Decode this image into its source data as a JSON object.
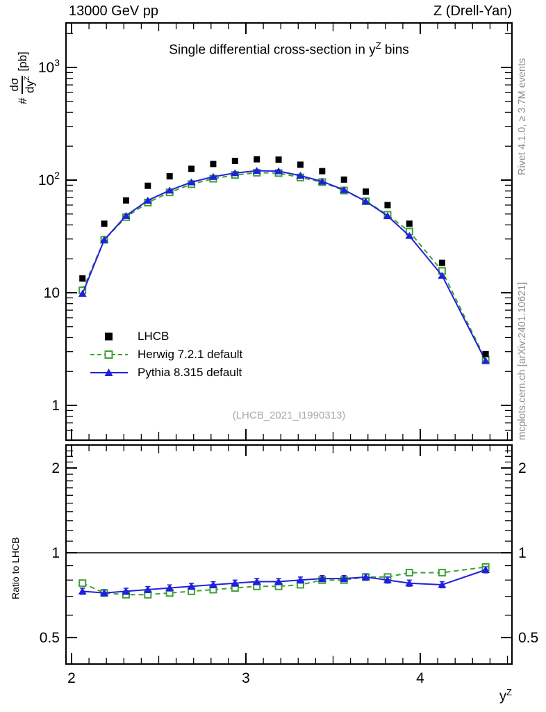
{
  "header": {
    "left": "13000 GeV pp",
    "right": "Z (Drell-Yan)"
  },
  "title": {
    "pre": "Single differential cross-section in ",
    "base": "y",
    "sup": "Z",
    "post": " bins"
  },
  "watermark": "(LHCB_2021_I1990313)",
  "side_notes": {
    "top_right": "Rivet 4.1.0, ≥ 3.7M events",
    "bottom_right": "mcplots.cern.ch [arXiv:2401.10621]"
  },
  "axes": {
    "x_label": {
      "base": "y",
      "sup": "Z"
    },
    "y_label": {
      "prefix": "#",
      "numerator": "dσ",
      "denominator_base": "dy",
      "denominator_sup": "Z",
      "units": "[pb]"
    },
    "ratio_label": "Ratio to LHCB",
    "x_ticks": [
      {
        "v": 2,
        "label": "2"
      },
      {
        "v": 3,
        "label": "3"
      },
      {
        "v": 4,
        "label": "4"
      }
    ],
    "y_ticks_main": [
      {
        "v": 1,
        "label": "1"
      },
      {
        "v": 10,
        "label": "10"
      },
      {
        "v": 100,
        "label": "10",
        "sup": "2"
      },
      {
        "v": 1000,
        "label": "10",
        "sup": "3"
      }
    ],
    "y_ticks_ratio": [
      {
        "v": 0.5,
        "label": "0.5"
      },
      {
        "v": 1,
        "label": "1"
      },
      {
        "v": 2,
        "label": "2"
      }
    ]
  },
  "chart_data": {
    "type": "line",
    "x_axis_scale": "linear",
    "y_axis_scale": "log",
    "x_range": [
      1.97,
      4.53
    ],
    "y_range_main": [
      0.49,
      2480
    ],
    "y_range_ratio": [
      0.4,
      2.41
    ],
    "xlabel": "y^Z",
    "ylabel": "# dsigma/dy^Z [pb]",
    "x": [
      2.0625,
      2.1875,
      2.3125,
      2.4375,
      2.5625,
      2.6875,
      2.8125,
      2.9375,
      3.0625,
      3.1875,
      3.3125,
      3.4375,
      3.5625,
      3.6875,
      3.8125,
      3.9375,
      4.125,
      4.375
    ],
    "series": [
      {
        "name": "LHCB",
        "color": "#000000",
        "marker": "filled-square",
        "line": "none",
        "values": [
          13.4,
          41,
          66,
          89,
          108,
          126,
          139,
          148,
          153,
          152,
          137,
          120,
          101,
          79,
          60,
          41,
          18.4,
          2.85
        ]
      },
      {
        "name": "Herwig 7.2.1 default",
        "color": "#3ca032",
        "marker": "open-square",
        "line": "dashed",
        "values": [
          10.5,
          29.5,
          46.9,
          63.2,
          77.8,
          92.0,
          102.9,
          111.0,
          116.3,
          115.5,
          105.5,
          96.0,
          80.8,
          64.8,
          49.2,
          34.9,
          15.6,
          2.54
        ]
      },
      {
        "name": "Pythia 8.315 default",
        "color": "#2020dd",
        "marker": "filled-triangle",
        "line": "solid",
        "values": [
          9.8,
          29.5,
          48.2,
          65.9,
          81.0,
          95.8,
          107.0,
          115.4,
          120.9,
          120.1,
          109.6,
          97.2,
          81.8,
          64.8,
          48.0,
          32.0,
          14.2,
          2.48
        ]
      }
    ],
    "ratio": {
      "reference": "LHCB",
      "series": [
        {
          "name": "Herwig 7.2.1 default",
          "values": [
            0.78,
            0.72,
            0.71,
            0.71,
            0.72,
            0.73,
            0.74,
            0.75,
            0.76,
            0.76,
            0.77,
            0.8,
            0.8,
            0.82,
            0.82,
            0.85,
            0.85,
            0.89
          ]
        },
        {
          "name": "Pythia 8.315 default",
          "values": [
            0.73,
            0.72,
            0.73,
            0.74,
            0.75,
            0.76,
            0.77,
            0.78,
            0.79,
            0.79,
            0.8,
            0.81,
            0.81,
            0.82,
            0.8,
            0.78,
            0.77,
            0.87
          ]
        }
      ]
    },
    "error_frac_main": 0.05,
    "error_frac_ratio": 0.025
  }
}
